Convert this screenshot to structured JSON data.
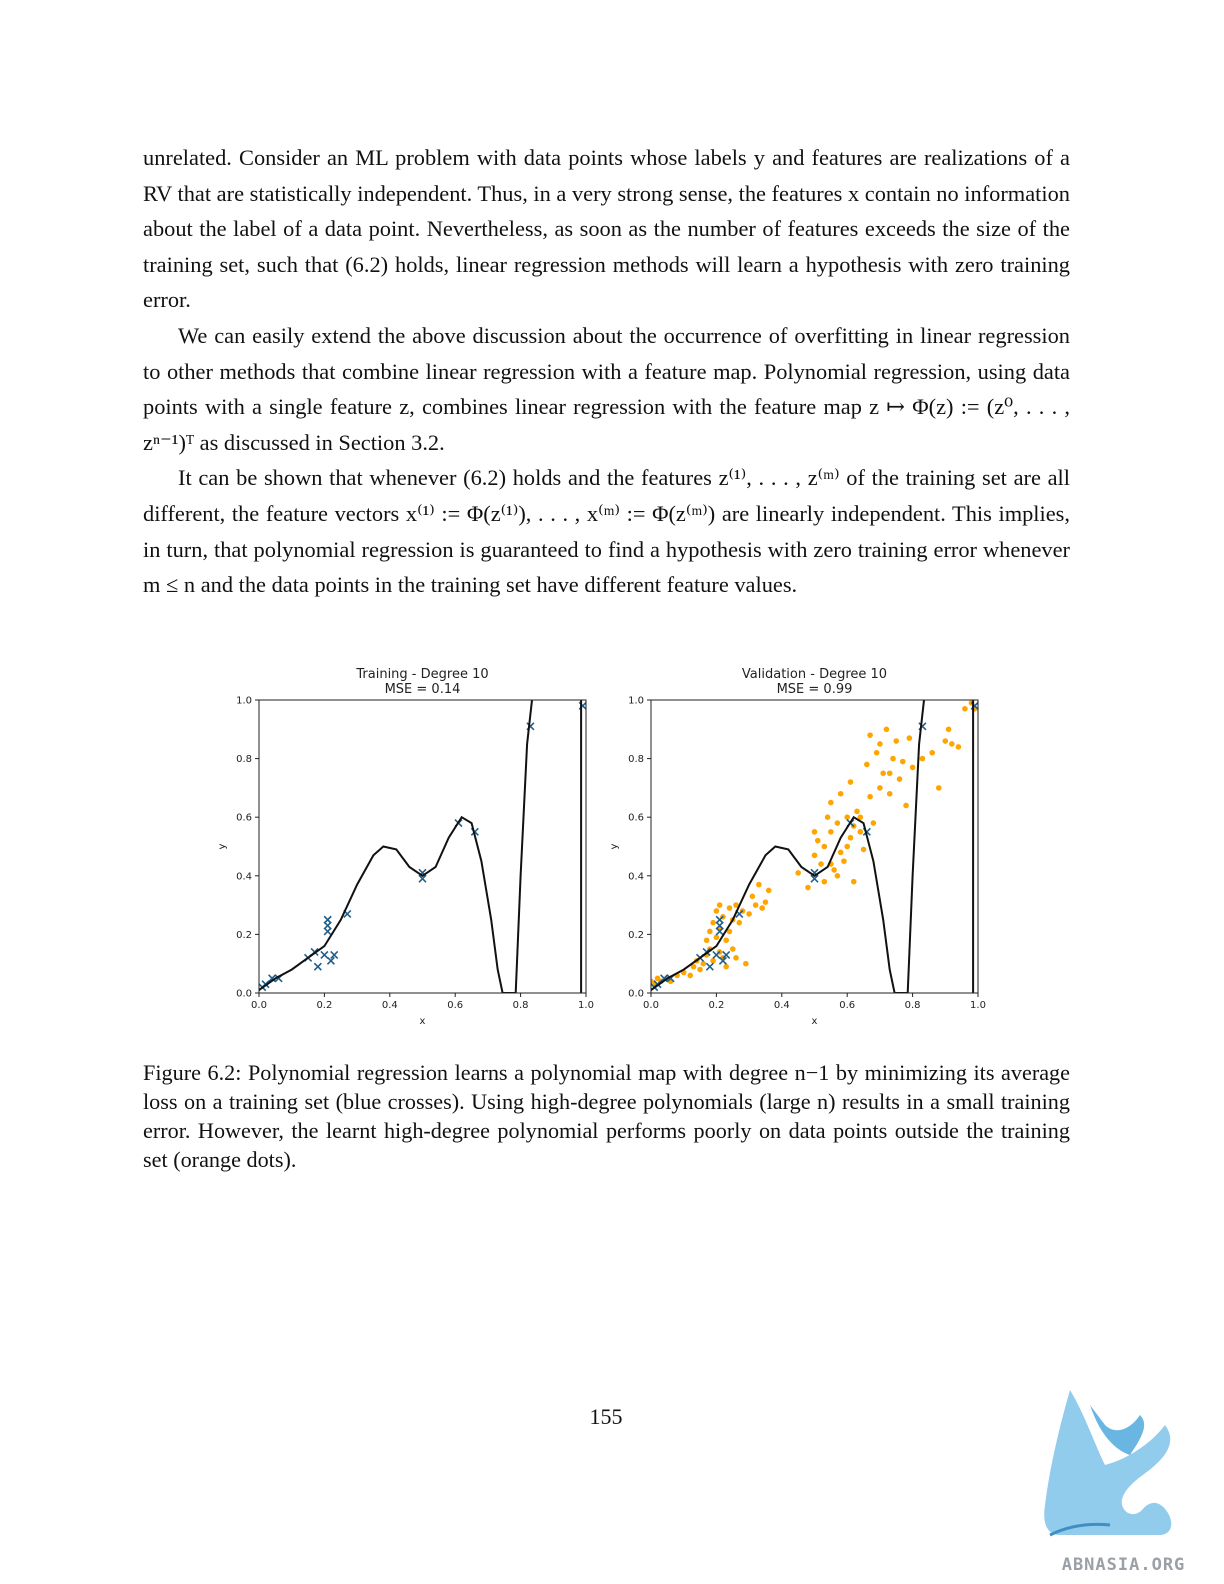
{
  "paragraphs": [
    "unrelated. Consider an ML problem with data points whose labels y and features are realizations of a RV that are statistically independent. Thus, in a very strong sense, the features x contain no information about the label of a data point. Nevertheless, as soon as the number of features exceeds the size of the training set, such that (6.2) holds, linear regression methods will learn a hypothesis with zero training error.",
    "We can easily extend the above discussion about the occurrence of overfitting in linear regression to other methods that combine linear regression with a feature map. Polynomial regression, using data points with a single feature z, combines linear regression with the feature map z ↦ Φ(z) := (z⁰, . . . , zⁿ⁻¹)ᵀ as discussed in Section 3.2.",
    "It can be shown that whenever (6.2) holds and the features z⁽¹⁾, . . . , z⁽ᵐ⁾ of the training set are all different, the feature vectors x⁽¹⁾ := Φ(z⁽¹⁾), . . . , x⁽ᵐ⁾ := Φ(z⁽ᵐ⁾) are linearly independent. This implies, in turn, that polynomial regression is guaranteed to find a hypothesis with zero training error whenever m ≤ n and the data points in the training set have different feature values."
  ],
  "caption": "Figure 6.2: Polynomial regression learns a polynomial map with degree n−1 by minimizing its average loss on a training set (blue crosses). Using high-degree polynomials (large n) results in a small training error. However, the learnt high-degree polynomial performs poorly on data points outside the training set (orange dots).",
  "page_number": "155",
  "logo_text": "ABNASIA.ORG",
  "colors": {
    "training": "#1f5f8b",
    "validation": "#ffa500",
    "curve": "#111111"
  },
  "chart_data": [
    {
      "type": "scatter",
      "title": "Training - Degree 10",
      "subtitle": "MSE = 0.14",
      "xlabel": "x",
      "ylabel": "y",
      "xlim": [
        0.0,
        1.0
      ],
      "ylim": [
        0.0,
        1.0
      ],
      "xticks": [
        "0.0",
        "0.2",
        "0.4",
        "0.6",
        "0.8",
        "1.0"
      ],
      "yticks": [
        "0.0",
        "0.2",
        "0.4",
        "0.6",
        "0.8",
        "1.0"
      ],
      "series": [
        {
          "marker": "x",
          "color": "#1f5f8b",
          "points": [
            [
              0.01,
              0.02
            ],
            [
              0.02,
              0.03
            ],
            [
              0.04,
              0.05
            ],
            [
              0.06,
              0.05
            ],
            [
              0.15,
              0.12
            ],
            [
              0.17,
              0.14
            ],
            [
              0.18,
              0.09
            ],
            [
              0.2,
              0.13
            ],
            [
              0.21,
              0.21
            ],
            [
              0.21,
              0.23
            ],
            [
              0.21,
              0.25
            ],
            [
              0.22,
              0.11
            ],
            [
              0.23,
              0.13
            ],
            [
              0.27,
              0.27
            ],
            [
              0.5,
              0.39
            ],
            [
              0.5,
              0.41
            ],
            [
              0.61,
              0.58
            ],
            [
              0.66,
              0.55
            ],
            [
              0.83,
              0.91
            ],
            [
              0.99,
              0.98
            ]
          ]
        },
        {
          "type": "line",
          "color": "#111111",
          "points": [
            [
              0.0,
              0.01
            ],
            [
              0.05,
              0.05
            ],
            [
              0.1,
              0.08
            ],
            [
              0.15,
              0.12
            ],
            [
              0.2,
              0.16
            ],
            [
              0.25,
              0.25
            ],
            [
              0.3,
              0.37
            ],
            [
              0.35,
              0.47
            ],
            [
              0.38,
              0.5
            ],
            [
              0.42,
              0.49
            ],
            [
              0.46,
              0.43
            ],
            [
              0.5,
              0.4
            ],
            [
              0.54,
              0.43
            ],
            [
              0.58,
              0.53
            ],
            [
              0.62,
              0.6
            ],
            [
              0.65,
              0.58
            ],
            [
              0.68,
              0.45
            ],
            [
              0.71,
              0.25
            ],
            [
              0.73,
              0.08
            ],
            [
              0.745,
              0.0
            ],
            [
              0.785,
              0.0
            ],
            [
              0.8,
              0.4
            ],
            [
              0.82,
              0.85
            ],
            [
              0.835,
              1.0
            ]
          ]
        },
        {
          "type": "line",
          "color": "#111111",
          "points": [
            [
              0.985,
              1.0
            ],
            [
              0.985,
              0.0
            ]
          ]
        }
      ]
    },
    {
      "type": "scatter",
      "title": "Validation - Degree 10",
      "subtitle": "MSE = 0.99",
      "xlabel": "x",
      "ylabel": "y",
      "xlim": [
        0.0,
        1.0
      ],
      "ylim": [
        0.0,
        1.0
      ],
      "xticks": [
        "0.0",
        "0.2",
        "0.4",
        "0.6",
        "0.8",
        "1.0"
      ],
      "yticks": [
        "0.0",
        "0.2",
        "0.4",
        "0.6",
        "0.8",
        "1.0"
      ],
      "series": [
        {
          "marker": "o",
          "color": "#ffa500",
          "points": [
            [
              0.0,
              0.04
            ],
            [
              0.01,
              0.03
            ],
            [
              0.02,
              0.05
            ],
            [
              0.03,
              0.04
            ],
            [
              0.05,
              0.05
            ],
            [
              0.06,
              0.04
            ],
            [
              0.08,
              0.06
            ],
            [
              0.1,
              0.07
            ],
            [
              0.12,
              0.06
            ],
            [
              0.13,
              0.09
            ],
            [
              0.14,
              0.11
            ],
            [
              0.15,
              0.08
            ],
            [
              0.16,
              0.1
            ],
            [
              0.17,
              0.13
            ],
            [
              0.17,
              0.18
            ],
            [
              0.18,
              0.15
            ],
            [
              0.18,
              0.21
            ],
            [
              0.19,
              0.11
            ],
            [
              0.19,
              0.24
            ],
            [
              0.2,
              0.19
            ],
            [
              0.2,
              0.28
            ],
            [
              0.21,
              0.14
            ],
            [
              0.21,
              0.22
            ],
            [
              0.21,
              0.3
            ],
            [
              0.22,
              0.12
            ],
            [
              0.22,
              0.26
            ],
            [
              0.23,
              0.18
            ],
            [
              0.23,
              0.09
            ],
            [
              0.24,
              0.21
            ],
            [
              0.24,
              0.29
            ],
            [
              0.25,
              0.15
            ],
            [
              0.25,
              0.25
            ],
            [
              0.26,
              0.12
            ],
            [
              0.26,
              0.3
            ],
            [
              0.27,
              0.24
            ],
            [
              0.28,
              0.28
            ],
            [
              0.29,
              0.1
            ],
            [
              0.3,
              0.27
            ],
            [
              0.31,
              0.33
            ],
            [
              0.32,
              0.3
            ],
            [
              0.33,
              0.37
            ],
            [
              0.34,
              0.29
            ],
            [
              0.35,
              0.31
            ],
            [
              0.36,
              0.35
            ],
            [
              0.5,
              0.55
            ],
            [
              0.5,
              0.47
            ],
            [
              0.51,
              0.52
            ],
            [
              0.52,
              0.44
            ],
            [
              0.53,
              0.5
            ],
            [
              0.54,
              0.6
            ],
            [
              0.55,
              0.55
            ],
            [
              0.55,
              0.65
            ],
            [
              0.56,
              0.42
            ],
            [
              0.57,
              0.58
            ],
            [
              0.58,
              0.68
            ],
            [
              0.58,
              0.48
            ],
            [
              0.59,
              0.45
            ],
            [
              0.6,
              0.6
            ],
            [
              0.61,
              0.72
            ],
            [
              0.61,
              0.53
            ],
            [
              0.62,
              0.38
            ],
            [
              0.63,
              0.62
            ],
            [
              0.64,
              0.55
            ],
            [
              0.65,
              0.49
            ],
            [
              0.66,
              0.78
            ],
            [
              0.67,
              0.88
            ],
            [
              0.68,
              0.58
            ],
            [
              0.69,
              0.82
            ],
            [
              0.7,
              0.85
            ],
            [
              0.71,
              0.75
            ],
            [
              0.72,
              0.9
            ],
            [
              0.73,
              0.68
            ],
            [
              0.74,
              0.8
            ],
            [
              0.75,
              0.86
            ],
            [
              0.76,
              0.73
            ],
            [
              0.77,
              0.79
            ],
            [
              0.78,
              0.64
            ],
            [
              0.79,
              0.87
            ],
            [
              0.8,
              0.77
            ],
            [
              0.83,
              0.8
            ],
            [
              0.86,
              0.82
            ],
            [
              0.88,
              0.7
            ],
            [
              0.9,
              0.86
            ],
            [
              0.91,
              0.9
            ],
            [
              0.92,
              0.85
            ],
            [
              0.94,
              0.84
            ],
            [
              0.96,
              0.97
            ],
            [
              0.98,
              0.99
            ],
            [
              0.99,
              0.97
            ],
            [
              0.53,
              0.38
            ],
            [
              0.55,
              0.44
            ],
            [
              0.64,
              0.6
            ],
            [
              0.48,
              0.36
            ],
            [
              0.45,
              0.41
            ],
            [
              0.57,
              0.4
            ],
            [
              0.6,
              0.5
            ],
            [
              0.62,
              0.57
            ],
            [
              0.67,
              0.67
            ],
            [
              0.7,
              0.7
            ],
            [
              0.73,
              0.75
            ]
          ]
        },
        {
          "marker": "x",
          "color": "#1f5f8b",
          "points": [
            [
              0.01,
              0.02
            ],
            [
              0.02,
              0.03
            ],
            [
              0.04,
              0.05
            ],
            [
              0.06,
              0.05
            ],
            [
              0.15,
              0.12
            ],
            [
              0.17,
              0.14
            ],
            [
              0.18,
              0.09
            ],
            [
              0.2,
              0.13
            ],
            [
              0.21,
              0.21
            ],
            [
              0.21,
              0.23
            ],
            [
              0.21,
              0.25
            ],
            [
              0.22,
              0.11
            ],
            [
              0.23,
              0.13
            ],
            [
              0.27,
              0.27
            ],
            [
              0.5,
              0.39
            ],
            [
              0.5,
              0.41
            ],
            [
              0.61,
              0.58
            ],
            [
              0.66,
              0.55
            ],
            [
              0.83,
              0.91
            ],
            [
              0.99,
              0.98
            ]
          ]
        },
        {
          "type": "line",
          "color": "#111111",
          "points": [
            [
              0.0,
              0.01
            ],
            [
              0.05,
              0.05
            ],
            [
              0.1,
              0.08
            ],
            [
              0.15,
              0.12
            ],
            [
              0.2,
              0.16
            ],
            [
              0.25,
              0.25
            ],
            [
              0.3,
              0.37
            ],
            [
              0.35,
              0.47
            ],
            [
              0.38,
              0.5
            ],
            [
              0.42,
              0.49
            ],
            [
              0.46,
              0.43
            ],
            [
              0.5,
              0.4
            ],
            [
              0.54,
              0.43
            ],
            [
              0.58,
              0.53
            ],
            [
              0.62,
              0.6
            ],
            [
              0.65,
              0.58
            ],
            [
              0.68,
              0.45
            ],
            [
              0.71,
              0.25
            ],
            [
              0.73,
              0.08
            ],
            [
              0.745,
              0.0
            ],
            [
              0.785,
              0.0
            ],
            [
              0.8,
              0.4
            ],
            [
              0.82,
              0.85
            ],
            [
              0.835,
              1.0
            ]
          ]
        },
        {
          "type": "line",
          "color": "#111111",
          "points": [
            [
              0.985,
              1.0
            ],
            [
              0.985,
              0.0
            ]
          ]
        }
      ]
    }
  ]
}
